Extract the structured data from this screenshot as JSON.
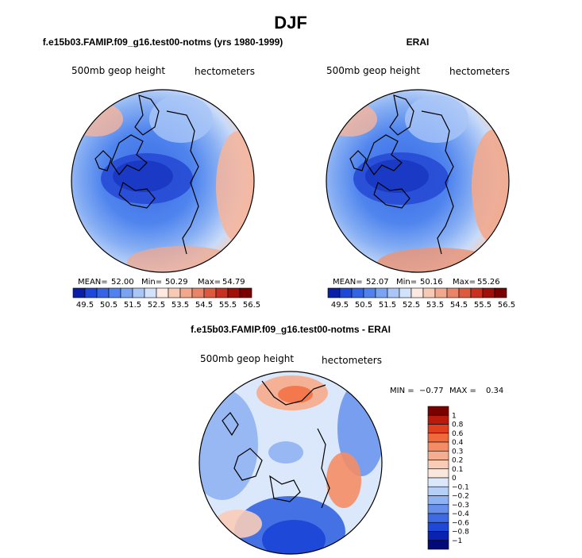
{
  "chart_data": {
    "type": "heatmap",
    "title": "DJF",
    "panels": [
      {
        "title": "f.e15b03.FAMIP.f09_g16.test00-notms (yrs 1980-1999)",
        "left_label": "500mb geop height",
        "right_label": "hectometers",
        "stats": {
          "mean_label": "MEAN=",
          "mean": "52.00",
          "min_label": "Min=",
          "min": "50.29",
          "max_label": "Max=",
          "max": "54.79"
        },
        "colorbar": {
          "levels": [
            "49.5",
            "50.5",
            "51.5",
            "52.5",
            "53.5",
            "54.5",
            "55.5",
            "56.5"
          ],
          "colors": [
            "#0a1fa8",
            "#1e48d8",
            "#3464e6",
            "#4f82ee",
            "#7aa3f2",
            "#a9c6f7",
            "#d2e2fb",
            "#fde9e0",
            "#f8c9b4",
            "#f2a88d",
            "#ea8468",
            "#dc5a3e",
            "#c8301f",
            "#a01008",
            "#7a0000"
          ]
        },
        "field_stops": [
          {
            "pos": 0.0,
            "color": "#3c6be4"
          },
          {
            "pos": 0.35,
            "color": "#4f84ee"
          },
          {
            "pos": 0.55,
            "color": "#86aef3"
          },
          {
            "pos": 0.72,
            "color": "#c9dbf8"
          },
          {
            "pos": 0.82,
            "color": "#f7cfbd"
          },
          {
            "pos": 0.92,
            "color": "#ec9273"
          },
          {
            "pos": 1.0,
            "color": "#dc5a3e"
          }
        ]
      },
      {
        "title": "ERAI",
        "left_label": "500mb geop height",
        "right_label": "hectometers",
        "stats": {
          "mean_label": "MEAN=",
          "mean": "52.07",
          "min_label": "Min=",
          "min": "50.16",
          "max_label": "Max=",
          "max": "55.26"
        },
        "colorbar": {
          "levels": [
            "49.5",
            "50.5",
            "51.5",
            "52.5",
            "53.5",
            "54.5",
            "55.5",
            "56.5"
          ],
          "colors": [
            "#0a1fa8",
            "#1e48d8",
            "#3464e6",
            "#4f82ee",
            "#7aa3f2",
            "#a9c6f7",
            "#d2e2fb",
            "#fde9e0",
            "#f8c9b4",
            "#f2a88d",
            "#ea8468",
            "#dc5a3e",
            "#c8301f",
            "#a01008",
            "#7a0000"
          ]
        },
        "field_stops": [
          {
            "pos": 0.0,
            "color": "#3c6be4"
          },
          {
            "pos": 0.35,
            "color": "#4f84ee"
          },
          {
            "pos": 0.55,
            "color": "#86aef3"
          },
          {
            "pos": 0.72,
            "color": "#c9dbf8"
          },
          {
            "pos": 0.82,
            "color": "#f7cfbd"
          },
          {
            "pos": 0.92,
            "color": "#ec9273"
          },
          {
            "pos": 1.0,
            "color": "#d8492e"
          }
        ]
      },
      {
        "title": "f.e15b03.FAMIP.f09_g16.test00-notms - ERAI",
        "left_label": "500mb geop height",
        "right_label": "hectometers",
        "stats": {
          "min_label": "MIN =",
          "min": "−0.77",
          "max_label": "MAX =",
          "max": "0.34"
        },
        "colorbar": {
          "levels": [
            "1",
            "0.8",
            "0.6",
            "0.4",
            "0.3",
            "0.2",
            "0.1",
            "0",
            "−0.1",
            "−0.2",
            "−0.3",
            "−0.4",
            "−0.6",
            "−0.8",
            "−1"
          ],
          "colors": [
            "#7a0000",
            "#b81a0c",
            "#e0401d",
            "#f26a3c",
            "#f48d65",
            "#f6ae90",
            "#f9ccb8",
            "#fbe6dc",
            "#dbe8fb",
            "#b6cff7",
            "#8fb2f2",
            "#6690ec",
            "#3c6be4",
            "#1e48d8",
            "#0a22b0",
            "#000a78"
          ]
        }
      }
    ]
  }
}
